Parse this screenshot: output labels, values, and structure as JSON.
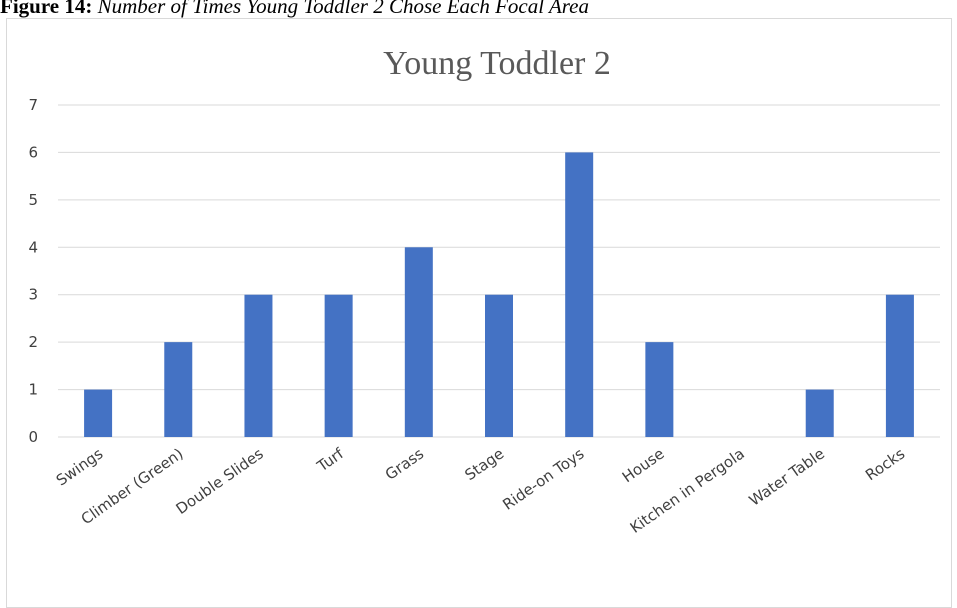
{
  "caption": {
    "label": "Figure 14",
    "text": "Number of Times Young Toddler 2 Chose Each Focal Area"
  },
  "colors": {
    "bar": "#4472C4",
    "grid": "#d9d9d9",
    "text": "#404040"
  },
  "chart_data": {
    "type": "bar",
    "title": "Young Toddler 2",
    "xlabel": "",
    "ylabel": "",
    "categories": [
      "Swings",
      "Climber (Green)",
      "Double Slides",
      "Turf",
      "Grass",
      "Stage",
      "Ride-on Toys",
      "House",
      "Kitchen in Pergola",
      "Water Table",
      "Rocks"
    ],
    "values": [
      1,
      2,
      3,
      3,
      4,
      3,
      6,
      2,
      0,
      1,
      3
    ],
    "ylim": [
      0,
      7
    ],
    "yticks": [
      "0",
      "1",
      "2",
      "3",
      "4",
      "5",
      "6",
      "7"
    ],
    "grid": true,
    "legend": "none"
  }
}
